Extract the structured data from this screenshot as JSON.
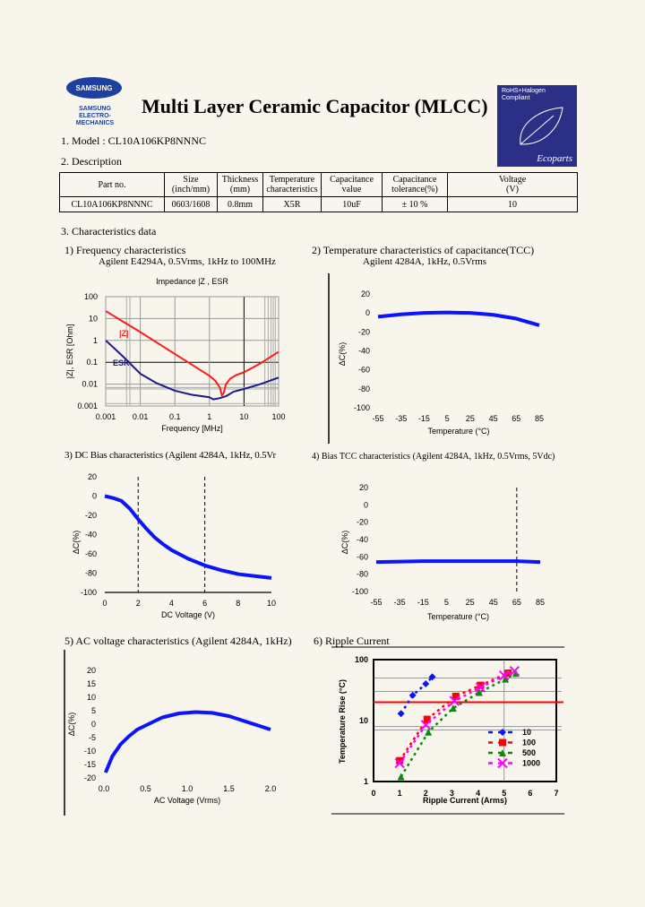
{
  "header": {
    "brand_logo": "SAMSUNG",
    "brand_sub": [
      "SAMSUNG",
      "ELECTRO-MECHANICS"
    ],
    "title": "Multi Layer Ceramic Capacitor (MLCC)",
    "eco_badge": {
      "line1": "RoHS+Halogen",
      "line2": "Compliant",
      "brand": "Ecoparts",
      "color": "#2b2f86"
    }
  },
  "model": "1. Model : CL10A106KP8NNNC",
  "description": {
    "heading": "2. Description",
    "columns": [
      [
        "Part no.",
        ""
      ],
      [
        "Size",
        "(inch/mm)"
      ],
      [
        "Thickness",
        "(mm)"
      ],
      [
        "Temperature",
        "characteristics"
      ],
      [
        "Capacitance",
        "value"
      ],
      [
        "Capacitance",
        "tolerance(%)"
      ],
      [
        "Voltage",
        "(V)"
      ]
    ],
    "row": [
      "CL10A106KP8NNNC",
      "0603/1608",
      "0.8mm",
      "X5R",
      "10uF",
      "± 10 %",
      "10"
    ]
  },
  "characteristics_heading": "3. Characteristics data",
  "chart_data": [
    {
      "id": "freq",
      "type": "line",
      "heading": "1) Frequency characteristics",
      "subheading": "Agilent E4294A, 0.5Vrms, 1kHz to 100MHz",
      "title": "Impedance |Z , ESR",
      "xlabel": "Frequency [MHz]",
      "ylabel": "|Z|, ESR [Ohm]",
      "xscale": "log",
      "yscale": "log",
      "xlim": [
        0.001,
        100
      ],
      "ylim": [
        0.001,
        100
      ],
      "grid": true,
      "xticks": [
        "0.001",
        "0.01",
        "0.1",
        "1",
        "10",
        "100"
      ],
      "yticks": [
        "0.001",
        "0.01",
        "0.1",
        "1",
        "10",
        "100"
      ],
      "series": [
        {
          "name": "|Z|",
          "color": "#ff1a1a",
          "x": [
            0.001,
            0.01,
            0.1,
            1,
            1.5,
            2,
            2.3,
            2.6,
            3,
            4,
            6,
            10,
            30,
            100
          ],
          "y": [
            22,
            2.4,
            0.24,
            0.024,
            0.014,
            0.007,
            0.003,
            0.004,
            0.01,
            0.018,
            0.026,
            0.035,
            0.09,
            0.3
          ]
        },
        {
          "name": "ESR",
          "color": "#1a1a8c",
          "x": [
            0.001,
            0.003,
            0.01,
            0.03,
            0.1,
            0.3,
            1,
            1.3,
            2,
            3,
            5,
            10,
            30,
            100
          ],
          "y": [
            1.0,
            0.2,
            0.03,
            0.011,
            0.005,
            0.0033,
            0.0025,
            0.002,
            0.0023,
            0.0028,
            0.0045,
            0.006,
            0.01,
            0.02
          ]
        }
      ]
    },
    {
      "id": "tcc",
      "type": "line",
      "heading": "2) Temperature characteristics of capacitance(TCC)",
      "subheading": "Agilent 4284A, 1kHz, 0.5Vrms",
      "xlabel": "Temperature (°C)",
      "ylabel": "ΔC(%)",
      "xlim": [
        -55,
        85
      ],
      "ylim": [
        -100,
        20
      ],
      "grid": false,
      "xticks": [
        "-55",
        "-35",
        "-15",
        "5",
        "25",
        "45",
        "65",
        "85"
      ],
      "yticks": [
        "-100",
        "-80",
        "-60",
        "-40",
        "-20",
        "0",
        "20"
      ],
      "series": [
        {
          "color": "#0a14ff",
          "x": [
            -55,
            -35,
            -15,
            5,
            25,
            45,
            65,
            85
          ],
          "y": [
            -4,
            -1.5,
            0,
            0.5,
            0,
            -2,
            -6,
            -13
          ]
        }
      ]
    },
    {
      "id": "dcbias",
      "type": "line",
      "heading": "3) DC Bias characteristics (Agilent 4284A, 1kHz, 0.5Vr",
      "xlabel": "DC Voltage (V)",
      "ylabel": "ΔC(%)",
      "xlim": [
        0,
        10
      ],
      "ylim": [
        -100,
        20
      ],
      "grid": false,
      "dashed_x": [
        2,
        6
      ],
      "xticks": [
        "0",
        "2",
        "4",
        "6",
        "8",
        "10"
      ],
      "yticks": [
        "-100",
        "-80",
        "-60",
        "-40",
        "-20",
        "0",
        "20"
      ],
      "series": [
        {
          "color": "#0a14ff",
          "x": [
            0,
            0.5,
            1,
            1.5,
            2,
            2.5,
            3,
            3.5,
            4,
            5,
            6,
            7,
            8,
            9,
            10
          ],
          "y": [
            0,
            -2,
            -5,
            -13,
            -24,
            -34,
            -43,
            -50,
            -56,
            -65,
            -72,
            -77,
            -81,
            -83,
            -85
          ]
        }
      ]
    },
    {
      "id": "biastcc",
      "type": "line",
      "heading": "4) Bias TCC characteristics (Agilent 4284A, 1kHz, 0.5Vrms, 5Vdc)",
      "xlabel": "Temperature (°C)",
      "ylabel": "ΔC(%)",
      "xlim": [
        -55,
        85
      ],
      "ylim": [
        -100,
        20
      ],
      "grid": false,
      "dashed_x": [
        65
      ],
      "xticks": [
        "-55",
        "-35",
        "-15",
        "5",
        "25",
        "45",
        "65",
        "85"
      ],
      "yticks": [
        "-100",
        "-80",
        "-60",
        "-40",
        "-20",
        "0",
        "20"
      ],
      "series": [
        {
          "color": "#0a14ff",
          "x": [
            -55,
            -35,
            -15,
            5,
            25,
            45,
            65,
            85
          ],
          "y": [
            -66,
            -65.5,
            -65,
            -65,
            -65,
            -65,
            -65,
            -66
          ]
        }
      ]
    },
    {
      "id": "acv",
      "type": "line",
      "heading": "5) AC voltage characteristics (Agilent 4284A, 1kHz)",
      "xlabel": "AC Voltage (Vrms)",
      "ylabel": "ΔC(%)",
      "xlim": [
        0,
        2
      ],
      "ylim": [
        -20,
        20
      ],
      "grid": false,
      "xticks": [
        "0.0",
        "0.5",
        "1.0",
        "1.5",
        "2.0"
      ],
      "yticks": [
        "-20",
        "-15",
        "-10",
        "-5",
        "0",
        "5",
        "10",
        "15",
        "20"
      ],
      "series": [
        {
          "color": "#0a14ff",
          "x": [
            0.02,
            0.1,
            0.2,
            0.3,
            0.4,
            0.5,
            0.7,
            0.9,
            1.1,
            1.3,
            1.5,
            1.7,
            1.9,
            2.0
          ],
          "y": [
            -18,
            -12,
            -7.5,
            -4.5,
            -2,
            -0.5,
            2.5,
            4,
            4.5,
            4.2,
            3,
            1,
            -1,
            -2
          ]
        }
      ]
    },
    {
      "id": "ripple",
      "type": "scatter",
      "heading": "6) Ripple Current",
      "xlabel": "Ripple Current (Arms)",
      "ylabel": "Temperature Rise (°C)",
      "xlim": [
        0,
        7
      ],
      "ylim": [
        1,
        100
      ],
      "yscale": "log",
      "grid": true,
      "legend": "bottom-right",
      "reference_line": {
        "y": 20,
        "color": "#ff0000"
      },
      "xticks": [
        "0",
        "1",
        "2",
        "3",
        "4",
        "5",
        "6",
        "7"
      ],
      "yticks": [
        "1",
        "10",
        "100"
      ],
      "series": [
        {
          "name": "10",
          "color": "#0a14ff",
          "marker": "diamond",
          "x": [
            1.05,
            1.5,
            2.0,
            2.25
          ],
          "y": [
            13,
            26,
            40,
            52
          ]
        },
        {
          "name": "100",
          "color": "#ff0000",
          "marker": "square",
          "x": [
            1.0,
            2.05,
            3.15,
            4.1,
            5.15
          ],
          "y": [
            2.2,
            10.5,
            25,
            38,
            60
          ]
        },
        {
          "name": "500",
          "color": "#0a8a0a",
          "marker": "triangle",
          "x": [
            1.05,
            2.1,
            3.05,
            4.05,
            5.05,
            5.45
          ],
          "y": [
            1.2,
            6.5,
            16,
            29,
            48,
            60
          ]
        },
        {
          "name": "1000",
          "color": "#ff00ff",
          "marker": "x",
          "x": [
            1.0,
            2.0,
            3.1,
            4.1,
            5.0,
            5.4
          ],
          "y": [
            2.0,
            8.5,
            21,
            35,
            55,
            65
          ]
        }
      ]
    }
  ]
}
